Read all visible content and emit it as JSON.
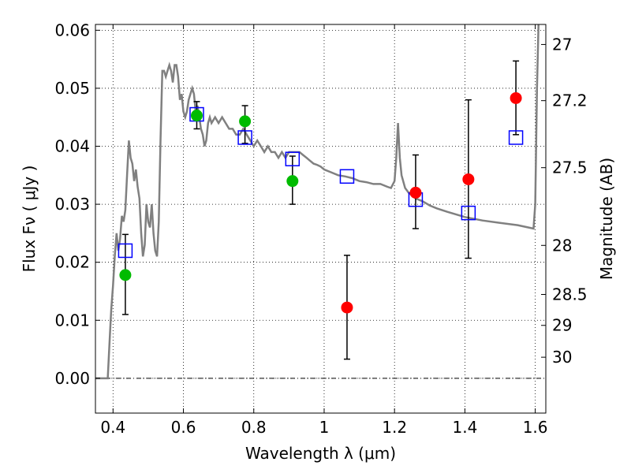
{
  "chart_data": {
    "type": "scatter",
    "xlabel": "Wavelength  λ (μm)",
    "ylabel": "Flux  Fν  ( μJy )",
    "y2label": "Magnitude (AB)",
    "xlim": [
      0.35,
      1.63
    ],
    "ylim": [
      -0.006,
      0.061
    ],
    "grid": true,
    "x_ticks": [
      0.4,
      0.6,
      0.8,
      1.0,
      1.2,
      1.4,
      1.6
    ],
    "x_tick_labels": [
      "0.4",
      "0.6",
      "0.8",
      "1",
      "1.2",
      "1.4",
      "1.6"
    ],
    "y_ticks": [
      0.0,
      0.01,
      0.02,
      0.03,
      0.04,
      0.05,
      0.06
    ],
    "y_tick_labels": [
      "0.00",
      "0.01",
      "0.02",
      "0.03",
      "0.04",
      "0.05",
      "0.06"
    ],
    "right_ticks": [
      {
        "mag": 27.0,
        "label": "27"
      },
      {
        "mag": 27.2,
        "label": "27.2"
      },
      {
        "mag": 27.5,
        "label": "27.5"
      },
      {
        "mag": 28.0,
        "label": "28"
      },
      {
        "mag": 28.5,
        "label": "28.5"
      },
      {
        "mag": 29.0,
        "label": "29"
      },
      {
        "mag": 30.0,
        "label": "30"
      }
    ],
    "colors": {
      "model": "#808080",
      "green": "#00bb00",
      "red": "#ff0000",
      "square": "#0000ff",
      "errorbar": "#000000"
    },
    "model_sed": {
      "x": [
        0.35,
        0.385,
        0.39,
        0.395,
        0.4,
        0.405,
        0.41,
        0.415,
        0.42,
        0.425,
        0.43,
        0.435,
        0.44,
        0.445,
        0.45,
        0.455,
        0.46,
        0.465,
        0.47,
        0.475,
        0.48,
        0.485,
        0.49,
        0.495,
        0.5,
        0.505,
        0.51,
        0.515,
        0.52,
        0.525,
        0.53,
        0.535,
        0.54,
        0.545,
        0.55,
        0.555,
        0.56,
        0.565,
        0.57,
        0.575,
        0.58,
        0.585,
        0.59,
        0.595,
        0.6,
        0.605,
        0.61,
        0.615,
        0.62,
        0.625,
        0.63,
        0.635,
        0.64,
        0.645,
        0.65,
        0.655,
        0.66,
        0.665,
        0.67,
        0.675,
        0.68,
        0.69,
        0.7,
        0.71,
        0.72,
        0.73,
        0.74,
        0.75,
        0.76,
        0.77,
        0.78,
        0.79,
        0.8,
        0.81,
        0.82,
        0.83,
        0.84,
        0.85,
        0.86,
        0.87,
        0.88,
        0.89,
        0.9,
        0.91,
        0.92,
        0.93,
        0.94,
        0.95,
        0.96,
        0.97,
        0.98,
        0.99,
        1.0,
        1.02,
        1.04,
        1.06,
        1.08,
        1.1,
        1.12,
        1.14,
        1.16,
        1.18,
        1.19,
        1.2,
        1.205,
        1.21,
        1.215,
        1.22,
        1.23,
        1.24,
        1.26,
        1.28,
        1.3,
        1.32,
        1.35,
        1.4,
        1.45,
        1.5,
        1.55,
        1.58,
        1.595,
        1.6,
        1.605,
        1.61
      ],
      "y": [
        0.0,
        0.0,
        0.006,
        0.012,
        0.016,
        0.021,
        0.025,
        0.022,
        0.024,
        0.028,
        0.027,
        0.029,
        0.035,
        0.041,
        0.038,
        0.037,
        0.034,
        0.036,
        0.033,
        0.031,
        0.025,
        0.021,
        0.023,
        0.03,
        0.027,
        0.026,
        0.03,
        0.025,
        0.022,
        0.021,
        0.027,
        0.041,
        0.053,
        0.053,
        0.052,
        0.053,
        0.054,
        0.053,
        0.051,
        0.054,
        0.054,
        0.052,
        0.048,
        0.049,
        0.046,
        0.045,
        0.046,
        0.048,
        0.049,
        0.05,
        0.049,
        0.046,
        0.047,
        0.045,
        0.043,
        0.042,
        0.04,
        0.041,
        0.044,
        0.045,
        0.044,
        0.045,
        0.044,
        0.045,
        0.044,
        0.043,
        0.043,
        0.042,
        0.042,
        0.043,
        0.042,
        0.041,
        0.04,
        0.041,
        0.04,
        0.039,
        0.04,
        0.039,
        0.039,
        0.038,
        0.039,
        0.038,
        0.039,
        0.039,
        0.039,
        0.039,
        0.0385,
        0.038,
        0.0375,
        0.037,
        0.0368,
        0.0365,
        0.036,
        0.0355,
        0.035,
        0.0348,
        0.0345,
        0.034,
        0.0338,
        0.0335,
        0.0335,
        0.033,
        0.0328,
        0.034,
        0.038,
        0.044,
        0.038,
        0.035,
        0.0328,
        0.032,
        0.031,
        0.0305,
        0.0298,
        0.0293,
        0.0287,
        0.0278,
        0.0272,
        0.0268,
        0.0264,
        0.026,
        0.0258,
        0.03,
        0.05,
        0.063
      ]
    },
    "green_points": {
      "x": [
        0.435,
        0.638,
        0.775,
        0.91
      ],
      "y": [
        0.0178,
        0.0453,
        0.0443,
        0.034
      ],
      "yerr_low": [
        0.011,
        0.043,
        0.0405,
        0.03
      ],
      "yerr_high": [
        0.0248,
        0.0477,
        0.047,
        0.0383
      ]
    },
    "red_points": {
      "x": [
        1.065,
        1.26,
        1.41,
        1.545
      ],
      "y": [
        0.0122,
        0.032,
        0.0343,
        0.0483
      ],
      "yerr_low": [
        0.0033,
        0.0258,
        0.0207,
        0.042
      ],
      "yerr_high": [
        0.0212,
        0.0385,
        0.048,
        0.0547
      ]
    },
    "squares": {
      "x": [
        0.435,
        0.638,
        0.775,
        0.91,
        1.065,
        1.26,
        1.41,
        1.545
      ],
      "y": [
        0.022,
        0.0455,
        0.0415,
        0.0378,
        0.0348,
        0.0308,
        0.0285,
        0.0415
      ]
    }
  }
}
